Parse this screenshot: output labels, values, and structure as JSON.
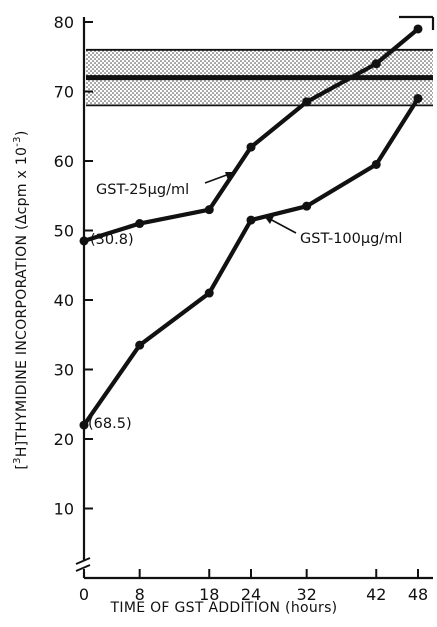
{
  "chart_data": {
    "type": "line",
    "xlabel": "TIME OF GST ADDITION (hours)",
    "ylabel_prefix": "[",
    "ylabel_sup": "3",
    "ylabel_main": "H]THYMIDINE INCORPORATION (Δcpm x 10",
    "ylabel_exp": "-3",
    "ylabel_end": ")",
    "x": [
      0,
      8,
      18,
      24,
      32,
      42,
      48
    ],
    "x_tick_labels": [
      "0",
      "8",
      "18",
      "24",
      "32",
      "42",
      "48"
    ],
    "y_ticks": [
      10,
      20,
      30,
      40,
      50,
      60,
      70,
      80
    ],
    "y_tick_labels": [
      "10",
      "20",
      "30",
      "40",
      "50",
      "60",
      "70",
      "80"
    ],
    "ylim": [
      0,
      80
    ],
    "y_axis_break": true,
    "reference_band": {
      "center": 72,
      "low": 68,
      "high": 76,
      "pattern": "stippled"
    },
    "series": [
      {
        "name": "GST-25µg/ml",
        "values": [
          48.5,
          51,
          53,
          62,
          68.5,
          74,
          79
        ]
      },
      {
        "name": "GST-100µg/ml",
        "values": [
          22,
          33.5,
          41,
          51.5,
          53.5,
          59.5,
          69
        ]
      }
    ],
    "annotations": {
      "series_a_label": "GST-25µg/ml",
      "series_b_label": "GST-100µg/ml",
      "value_a": "(30.8)",
      "value_b": "(68.5)"
    },
    "grid": false
  }
}
